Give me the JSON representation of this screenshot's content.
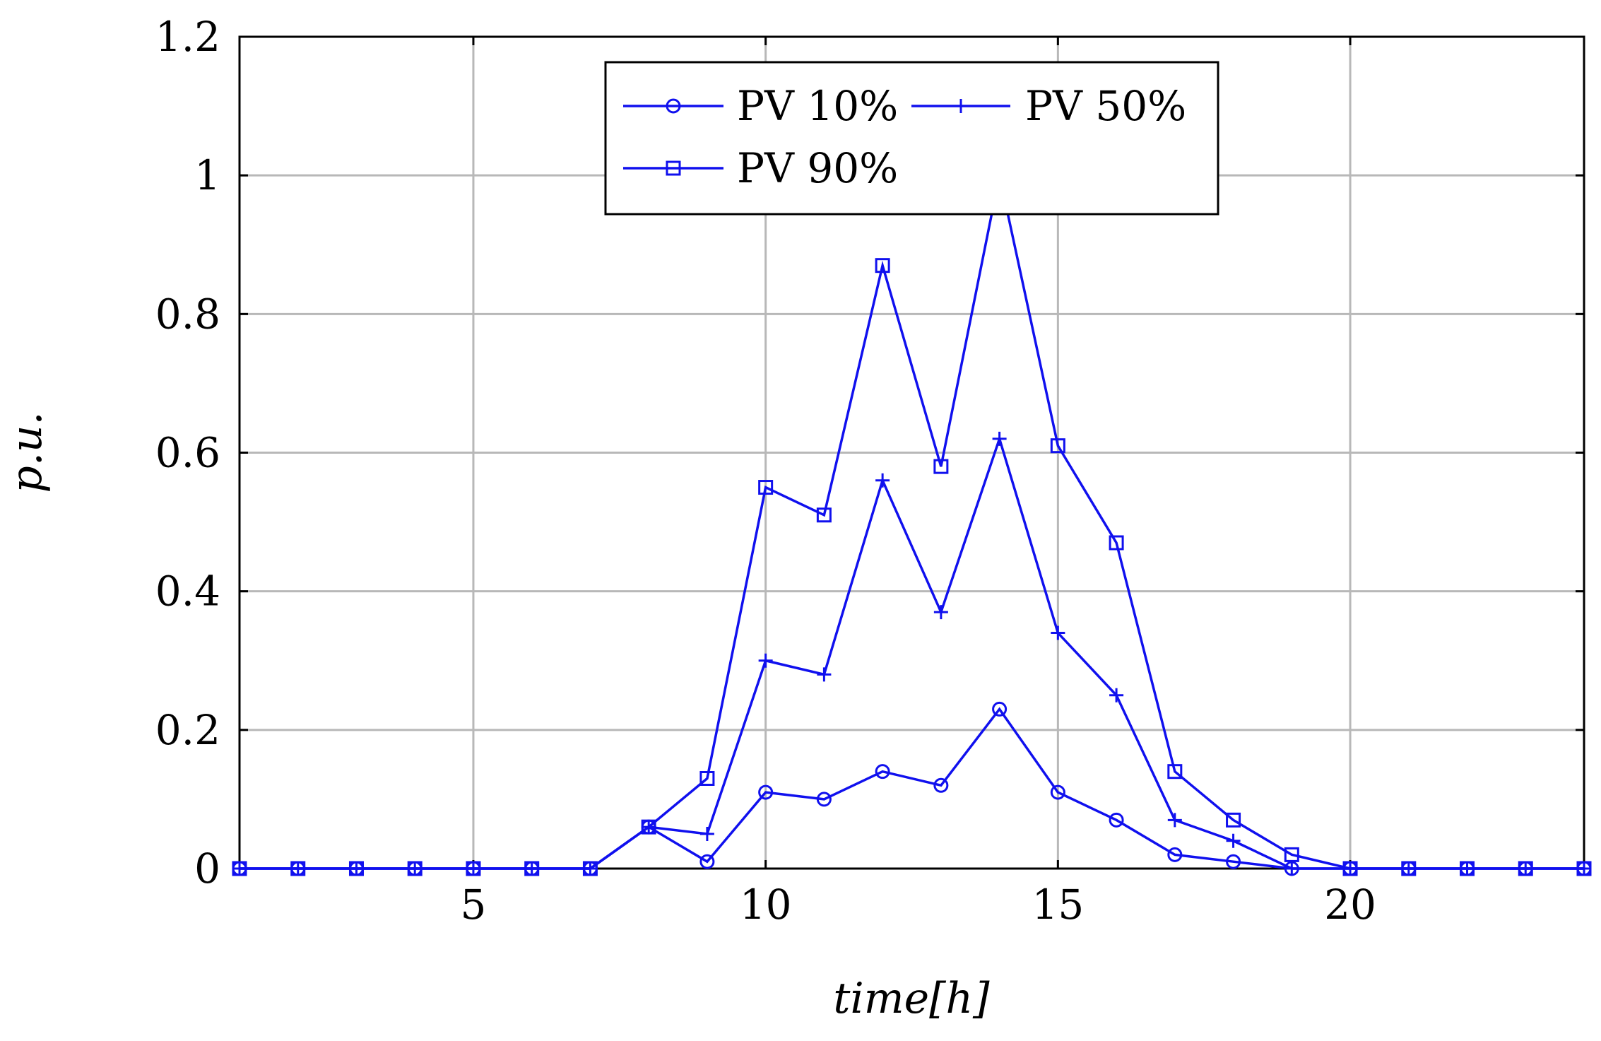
{
  "chart_data": {
    "type": "line",
    "title": "",
    "xlabel": "time[h]",
    "ylabel": "p.u.",
    "xlim": [
      1,
      24
    ],
    "ylim": [
      0,
      1.2
    ],
    "xticks": [
      5,
      10,
      15,
      20
    ],
    "xtick_labels": [
      "5",
      "10",
      "15",
      "20"
    ],
    "yticks": [
      0,
      0.2,
      0.4,
      0.6,
      0.8,
      1,
      1.2
    ],
    "ytick_labels": [
      "0",
      "0.2",
      "0.4",
      "0.6",
      "0.8",
      "1",
      "1.2"
    ],
    "grid": true,
    "legend_position": "top-center",
    "x": [
      1,
      2,
      3,
      4,
      5,
      6,
      7,
      8,
      9,
      10,
      11,
      12,
      13,
      14,
      15,
      16,
      17,
      18,
      19,
      20,
      21,
      22,
      23,
      24
    ],
    "series": [
      {
        "name": "PV 10%",
        "marker": "circle",
        "color": "#1010ee",
        "values": [
          0,
          0,
          0,
          0,
          0,
          0,
          0,
          0.06,
          0.01,
          0.11,
          0.1,
          0.14,
          0.12,
          0.23,
          0.11,
          0.07,
          0.02,
          0.01,
          0,
          0,
          0,
          0,
          0,
          0
        ]
      },
      {
        "name": "PV 50%",
        "marker": "plus",
        "color": "#1010ee",
        "values": [
          0,
          0,
          0,
          0,
          0,
          0,
          0,
          0.06,
          0.05,
          0.3,
          0.28,
          0.56,
          0.37,
          0.62,
          0.34,
          0.25,
          0.07,
          0.04,
          0,
          0,
          0,
          0,
          0,
          0
        ]
      },
      {
        "name": "PV 90%",
        "marker": "square",
        "color": "#1010ee",
        "values": [
          0,
          0,
          0,
          0,
          0,
          0,
          0,
          0.06,
          0.13,
          0.55,
          0.51,
          0.87,
          0.58,
          1.0,
          0.61,
          0.47,
          0.14,
          0.07,
          0.02,
          0,
          0,
          0,
          0,
          0
        ]
      }
    ]
  }
}
